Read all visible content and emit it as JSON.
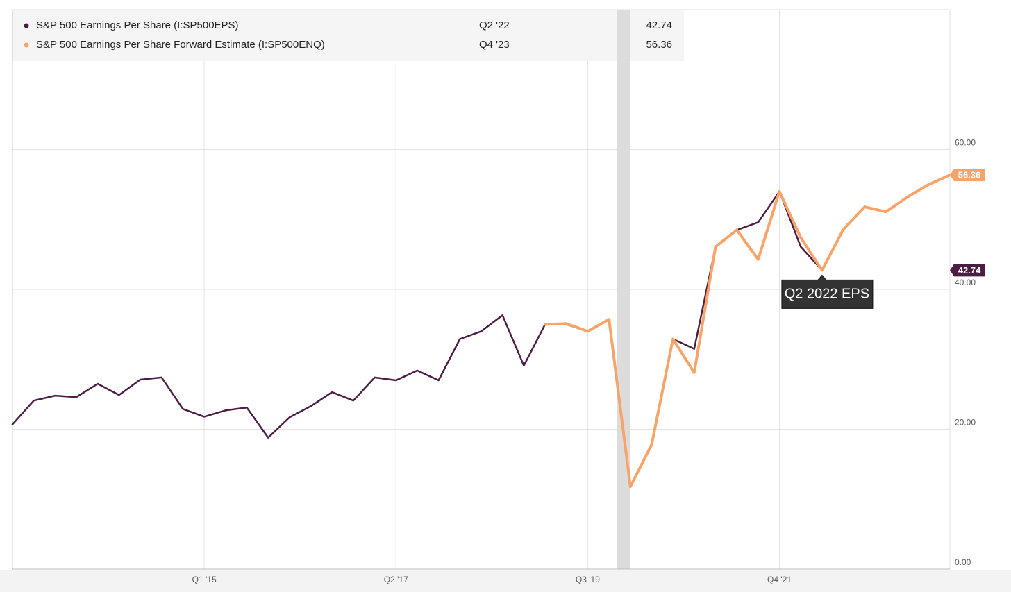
{
  "chart_data": {
    "type": "line",
    "categories": [
      null,
      null,
      null,
      null,
      null,
      null,
      null,
      null,
      null,
      "Q1 '15",
      null,
      null,
      null,
      null,
      null,
      null,
      null,
      null,
      "Q2 '17",
      null,
      null,
      null,
      null,
      null,
      null,
      null,
      null,
      "Q3 '19",
      null,
      null,
      null,
      null,
      null,
      null,
      null,
      null,
      "Q4 '21",
      null,
      null,
      null,
      null,
      null,
      null,
      null,
      null
    ],
    "series": [
      {
        "name": "S&P 500 Earnings Per Share (I:SP500EPS)",
        "color": "#4b1d45",
        "last_label": "Q2 '22",
        "values": [
          20.7,
          24.1,
          24.8,
          24.6,
          26.5,
          24.9,
          27.1,
          27.4,
          22.9,
          21.8,
          22.7,
          23.1,
          18.8,
          21.7,
          23.3,
          25.3,
          24.1,
          27.4,
          27.0,
          28.4,
          27.0,
          32.9,
          34.0,
          36.3,
          29.1,
          35.0,
          35.0,
          34.0,
          35.7,
          11.8,
          17.8,
          32.9,
          31.5,
          46.1,
          48.5,
          49.6,
          54.0,
          46.1,
          42.74,
          null,
          null,
          null,
          null,
          null,
          null
        ]
      },
      {
        "name": "S&P 500 Earnings Per Share Forward Estimate (I:SP500ENQ)",
        "color": "#f7a46a",
        "last_label": "Q4 '23",
        "values": [
          null,
          null,
          null,
          null,
          null,
          null,
          null,
          null,
          null,
          null,
          null,
          null,
          null,
          null,
          null,
          null,
          null,
          null,
          null,
          null,
          null,
          null,
          null,
          null,
          null,
          35.0,
          35.1,
          34.0,
          35.7,
          11.8,
          17.8,
          32.9,
          28.1,
          46.1,
          48.5,
          44.3,
          54.0,
          47.4,
          42.74,
          48.6,
          51.8,
          51.1,
          53.2,
          55.0,
          56.36
        ]
      }
    ],
    "annotation": "Q2 2022 EPS",
    "ylim": [
      0,
      80
    ],
    "yticks": [
      {
        "value": 0,
        "label": "0.00"
      },
      {
        "value": 20,
        "label": "20.00"
      },
      {
        "value": 40,
        "label": "40.00"
      },
      {
        "value": 60,
        "label": "60.00"
      }
    ],
    "grid": true
  }
}
